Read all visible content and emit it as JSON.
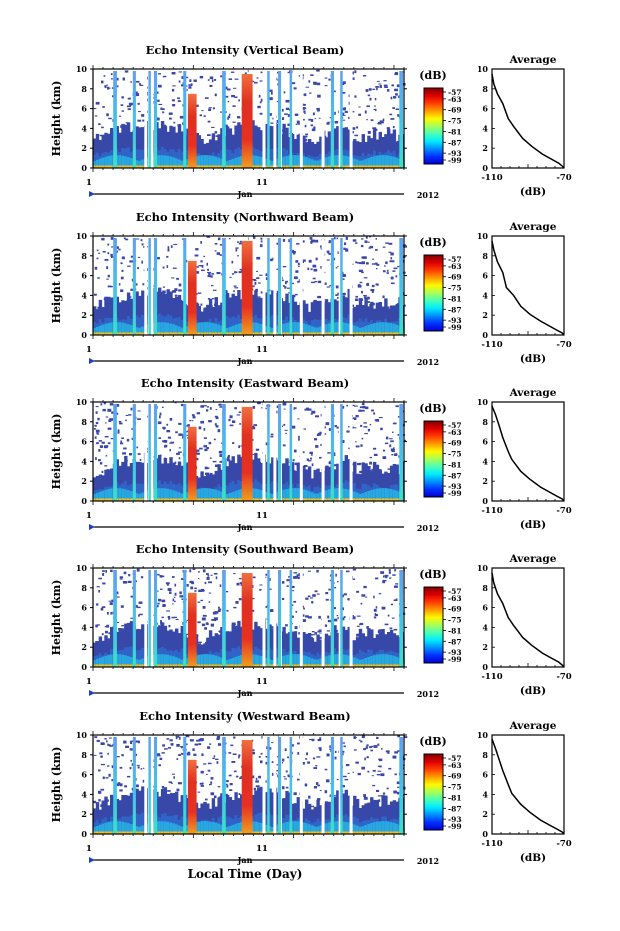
{
  "figure": {
    "xaxis_title": "Local Time (Day)",
    "colorbar_unit": "(dB)",
    "profile_title": "Average",
    "profile_xlabel": "(dB)"
  },
  "chart_data": [
    {
      "type": "heatmap",
      "title": "Echo Intensity (Vertical Beam)",
      "ylabel": "Height (km)",
      "ylim": [
        0,
        10
      ],
      "yticks": [
        "0",
        "2",
        "4",
        "6",
        "8",
        "10"
      ],
      "xticks": [
        "1",
        "11"
      ],
      "month_label": "Jan",
      "year_label": "2012",
      "colorbar_ticks": [
        "-57",
        "-63",
        "-69",
        "-75",
        "-81",
        "-87",
        "-93",
        "-99"
      ],
      "colorbar_range": [
        -99,
        -57
      ],
      "profile": {
        "title": "Average",
        "xlabel": "(dB)",
        "xlim": [
          -110,
          -70
        ],
        "xticks": [
          "-110",
          "-70"
        ],
        "x": [
          -110,
          -109,
          -107,
          -104,
          -101,
          -98,
          -93,
          -88,
          -82,
          -77,
          -73,
          -71,
          -70
        ],
        "y": [
          9.5,
          8.5,
          7.5,
          6.5,
          5.0,
          4.2,
          3.0,
          2.2,
          1.4,
          0.9,
          0.5,
          0.2,
          0.0
        ]
      }
    },
    {
      "type": "heatmap",
      "title": "Echo Intensity (Northward Beam)",
      "ylabel": "Height (km)",
      "ylim": [
        0,
        10
      ],
      "yticks": [
        "0",
        "2",
        "4",
        "6",
        "8",
        "10"
      ],
      "xticks": [
        "1",
        "11"
      ],
      "month_label": "Jan",
      "year_label": "2012",
      "colorbar_ticks": [
        "-57",
        "-63",
        "-69",
        "-75",
        "-81",
        "-87",
        "-93",
        "-99"
      ],
      "colorbar_range": [
        -99,
        -57
      ],
      "profile": {
        "title": "Average",
        "xlabel": "(dB)",
        "xlim": [
          -110,
          -70
        ],
        "xticks": [
          "-110",
          "-70"
        ],
        "x": [
          -110,
          -109,
          -107,
          -104,
          -102,
          -98,
          -94,
          -89,
          -83,
          -78,
          -74,
          -71,
          -70
        ],
        "y": [
          9.5,
          8.6,
          7.4,
          6.3,
          4.8,
          4.0,
          2.9,
          2.1,
          1.4,
          0.9,
          0.5,
          0.2,
          0.0
        ]
      }
    },
    {
      "type": "heatmap",
      "title": "Echo Intensity (Eastward Beam)",
      "ylabel": "Height (km)",
      "ylim": [
        0,
        10
      ],
      "yticks": [
        "0",
        "2",
        "4",
        "6",
        "8",
        "10"
      ],
      "xticks": [
        "1",
        "11"
      ],
      "month_label": "Jan",
      "year_label": "2012",
      "colorbar_ticks": [
        "-57",
        "-63",
        "-69",
        "-75",
        "-81",
        "-87",
        "-93",
        "-99"
      ],
      "colorbar_range": [
        -99,
        -57
      ],
      "profile": {
        "title": "Average",
        "xlabel": "(dB)",
        "xlim": [
          -110,
          -70
        ],
        "xticks": [
          "-110",
          "-70"
        ],
        "x": [
          -110,
          -108,
          -106,
          -104,
          -101,
          -99,
          -94,
          -89,
          -83,
          -78,
          -74,
          -71,
          -70
        ],
        "y": [
          9.6,
          8.7,
          7.6,
          6.4,
          5.0,
          4.2,
          3.0,
          2.2,
          1.4,
          0.9,
          0.5,
          0.2,
          0.0
        ]
      }
    },
    {
      "type": "heatmap",
      "title": "Echo Intensity (Southward Beam)",
      "ylabel": "Height (km)",
      "ylim": [
        0,
        10
      ],
      "yticks": [
        "0",
        "2",
        "4",
        "6",
        "8",
        "10"
      ],
      "xticks": [
        "1",
        "11"
      ],
      "month_label": "Jan",
      "year_label": "2012",
      "colorbar_ticks": [
        "-57",
        "-63",
        "-69",
        "-75",
        "-81",
        "-87",
        "-93",
        "-99"
      ],
      "colorbar_range": [
        -99,
        -57
      ],
      "profile": {
        "title": "Average",
        "xlabel": "(dB)",
        "xlim": [
          -110,
          -70
        ],
        "xticks": [
          "-110",
          "-70"
        ],
        "x": [
          -110,
          -109,
          -107,
          -104,
          -101,
          -98,
          -93,
          -88,
          -82,
          -77,
          -73,
          -71,
          -70
        ],
        "y": [
          9.5,
          8.5,
          7.4,
          6.4,
          5.0,
          4.2,
          3.0,
          2.2,
          1.4,
          0.9,
          0.5,
          0.2,
          0.0
        ]
      }
    },
    {
      "type": "heatmap",
      "title": "Echo Intensity (Westward Beam)",
      "ylabel": "Height (km)",
      "ylim": [
        0,
        10
      ],
      "yticks": [
        "0",
        "2",
        "4",
        "6",
        "8",
        "10"
      ],
      "xticks": [
        "1",
        "11"
      ],
      "month_label": "Jan",
      "year_label": "2012",
      "colorbar_ticks": [
        "-57",
        "-63",
        "-69",
        "-75",
        "-81",
        "-87",
        "-93",
        "-99"
      ],
      "colorbar_range": [
        -99,
        -57
      ],
      "profile": {
        "title": "Average",
        "xlabel": "(dB)",
        "xlim": [
          -110,
          -70
        ],
        "xticks": [
          "-110",
          "-70"
        ],
        "x": [
          -110,
          -108,
          -106,
          -104,
          -101,
          -99,
          -94,
          -89,
          -83,
          -78,
          -74,
          -71,
          -70
        ],
        "y": [
          9.6,
          8.6,
          7.5,
          6.4,
          5.0,
          4.1,
          3.0,
          2.2,
          1.4,
          0.9,
          0.5,
          0.2,
          0.0
        ]
      }
    }
  ]
}
